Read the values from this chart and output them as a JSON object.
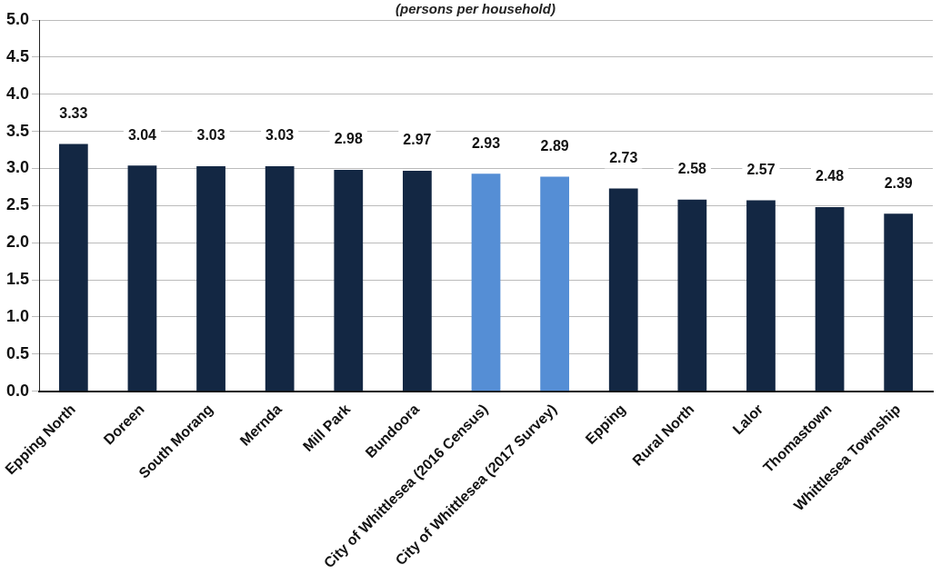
{
  "chart_data": {
    "type": "bar",
    "title": "(persons per household)",
    "categories": [
      "Epping North",
      "Doreen",
      "South Morang",
      "Mernda",
      "Mill Park",
      "Bundoora",
      "City of Whittlesea (2016 Census)",
      "City of Whittlesea (2017 Survey)",
      "Epping",
      "Rural North",
      "Lalor",
      "Thomastown",
      "Whittlesea Township"
    ],
    "values": [
      3.33,
      3.04,
      3.03,
      3.03,
      2.98,
      2.97,
      2.93,
      2.89,
      2.73,
      2.58,
      2.57,
      2.48,
      2.39
    ],
    "colors": [
      "#132743",
      "#132743",
      "#132743",
      "#132743",
      "#132743",
      "#132743",
      "#558ed5",
      "#558ed5",
      "#132743",
      "#132743",
      "#132743",
      "#132743",
      "#132743"
    ],
    "ylim": [
      0,
      5
    ],
    "yticks": [
      {
        "value": 0,
        "label": "0.0"
      },
      {
        "value": 0.5,
        "label": "0.5"
      },
      {
        "value": 1,
        "label": "1.0"
      },
      {
        "value": 1.5,
        "label": "1.5"
      },
      {
        "value": 2,
        "label": "2.0"
      },
      {
        "value": 2.5,
        "label": "2.5"
      },
      {
        "value": 3,
        "label": "3.0"
      },
      {
        "value": 3.5,
        "label": "3.5"
      },
      {
        "value": 4,
        "label": "4.0"
      },
      {
        "value": 4.5,
        "label": "4.5"
      },
      {
        "value": 5,
        "label": "5.0"
      }
    ],
    "grid": "y",
    "data_labels": true
  }
}
